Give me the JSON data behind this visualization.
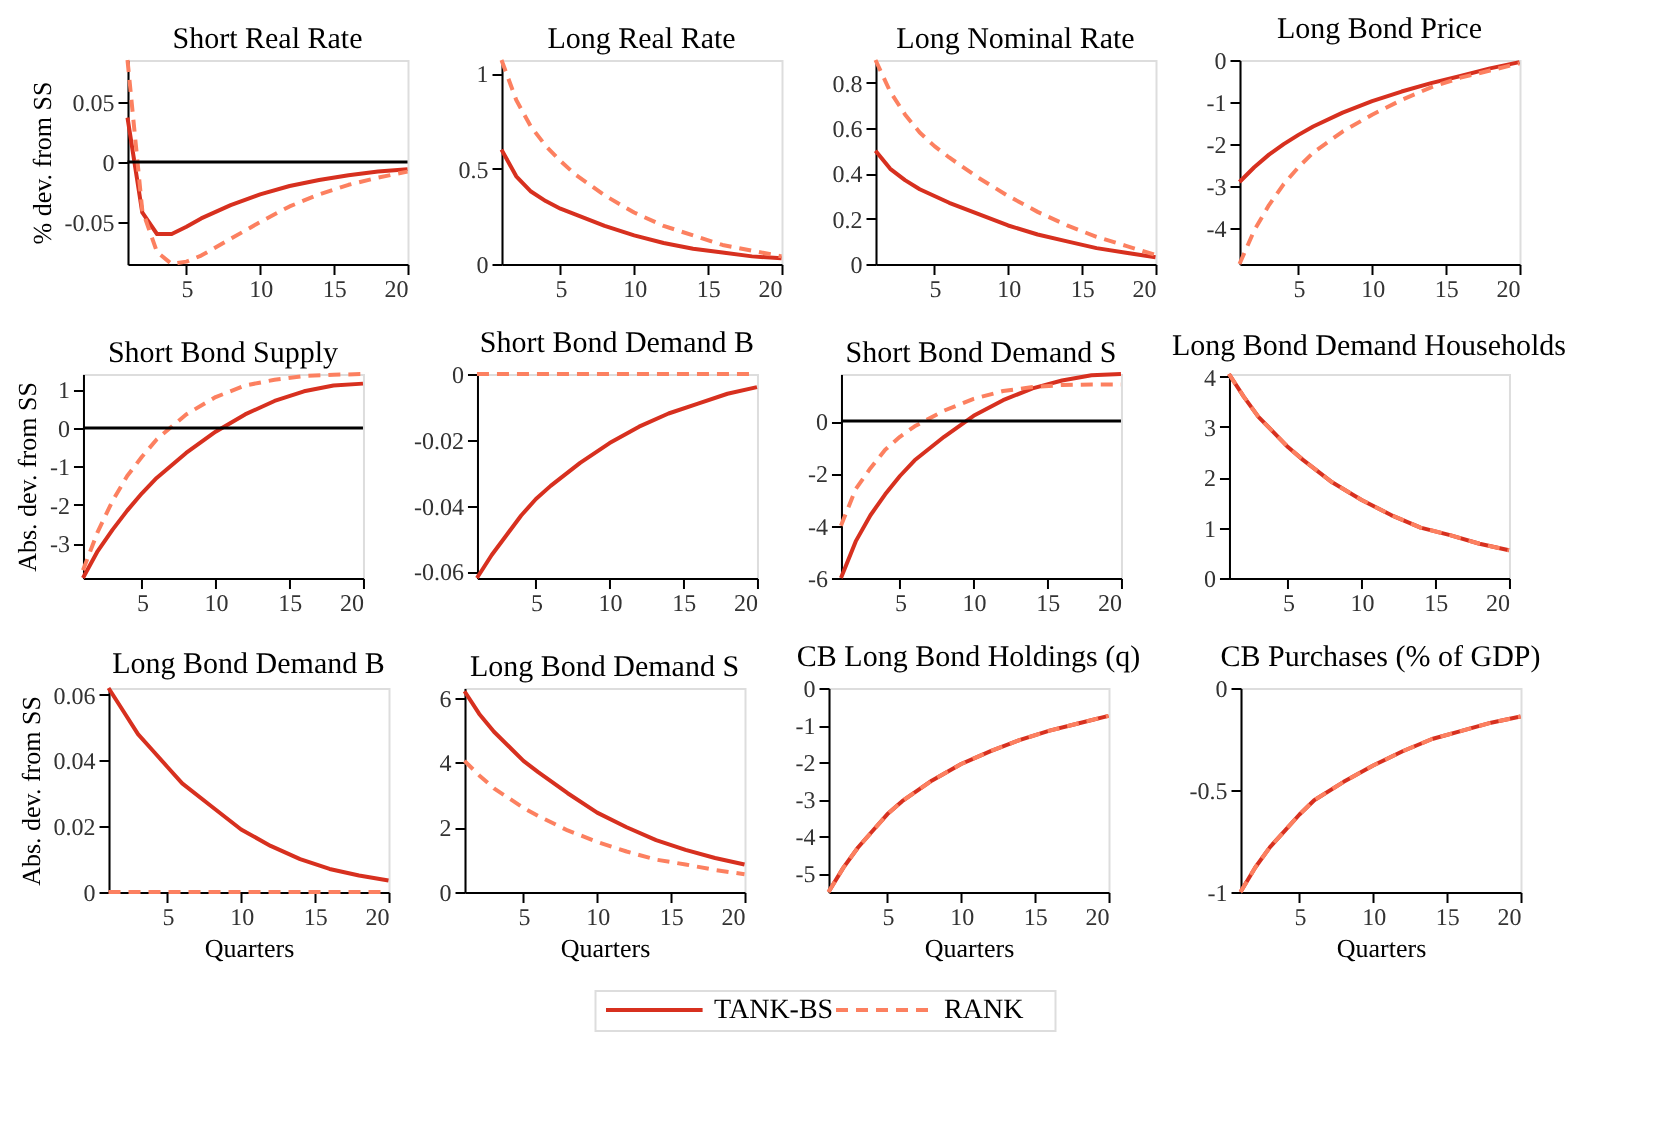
{
  "chart_data": [
    {
      "type": "line",
      "title": "Short Real Rate",
      "ylabel": "% dev. from SS",
      "x": [
        1,
        2,
        3,
        4,
        5,
        6,
        8,
        10,
        12,
        14,
        16,
        18,
        20
      ],
      "xlim": [
        1,
        20
      ],
      "xticks": [
        5,
        10,
        15,
        20
      ],
      "ylim": [
        -0.085,
        0.085
      ],
      "yticks": [
        -0.05,
        0,
        0.05
      ],
      "ref_lines": [
        {
          "axis": "y",
          "value": 0,
          "color": "#000000"
        }
      ],
      "legend": "bottom",
      "series": [
        {
          "name": "TANK-BS",
          "color": "#d7301f",
          "line_style": "solid",
          "values": [
            0.037,
            -0.042,
            -0.06,
            -0.06,
            -0.054,
            -0.047,
            -0.036,
            -0.027,
            -0.02,
            -0.015,
            -0.011,
            -0.008,
            -0.006
          ]
        },
        {
          "name": "RANK",
          "color": "#fc8060",
          "line_style": "dashed",
          "values": [
            0.085,
            -0.04,
            -0.075,
            -0.085,
            -0.083,
            -0.078,
            -0.064,
            -0.05,
            -0.037,
            -0.027,
            -0.019,
            -0.013,
            -0.008
          ]
        }
      ]
    },
    {
      "type": "line",
      "title": "Long Real Rate",
      "x": [
        1,
        2,
        3,
        4,
        5,
        6,
        8,
        10,
        12,
        14,
        16,
        18,
        20
      ],
      "xlim": [
        1,
        20
      ],
      "xticks": [
        5,
        10,
        15,
        20
      ],
      "ylim": [
        0,
        1.07
      ],
      "yticks": [
        0,
        0.5,
        1
      ],
      "legend": "bottom",
      "series": [
        {
          "color": "#d7301f",
          "line_style": "solid",
          "values": [
            0.6,
            0.46,
            0.38,
            0.33,
            0.29,
            0.26,
            0.2,
            0.15,
            0.11,
            0.08,
            0.06,
            0.04,
            0.03
          ]
        },
        {
          "color": "#fc8060",
          "line_style": "dashed",
          "values": [
            1.07,
            0.86,
            0.72,
            0.62,
            0.54,
            0.47,
            0.36,
            0.27,
            0.2,
            0.15,
            0.1,
            0.07,
            0.04
          ]
        }
      ]
    },
    {
      "type": "line",
      "title": "Long Nominal Rate",
      "x": [
        1,
        2,
        3,
        4,
        5,
        6,
        8,
        10,
        12,
        14,
        16,
        18,
        20
      ],
      "xlim": [
        1,
        20
      ],
      "xticks": [
        5,
        10,
        15,
        20
      ],
      "ylim": [
        0,
        0.9
      ],
      "yticks": [
        0,
        0.2,
        0.4,
        0.6,
        0.8
      ],
      "legend": "bottom",
      "series": [
        {
          "color": "#d7301f",
          "line_style": "solid",
          "values": [
            0.5,
            0.42,
            0.37,
            0.33,
            0.3,
            0.27,
            0.22,
            0.17,
            0.13,
            0.1,
            0.07,
            0.05,
            0.03
          ]
        },
        {
          "color": "#fc8060",
          "line_style": "dashed",
          "values": [
            0.9,
            0.76,
            0.66,
            0.58,
            0.52,
            0.47,
            0.38,
            0.3,
            0.23,
            0.17,
            0.12,
            0.08,
            0.04
          ]
        }
      ]
    },
    {
      "type": "line",
      "title": "Long Bond Price",
      "x": [
        1,
        2,
        3,
        4,
        5,
        6,
        8,
        10,
        12,
        14,
        16,
        18,
        20
      ],
      "xlim": [
        1,
        20
      ],
      "xticks": [
        5,
        10,
        15,
        20
      ],
      "ylim": [
        -4.85,
        0
      ],
      "yticks": [
        -4,
        -3,
        -2,
        -1,
        0
      ],
      "legend": "bottom",
      "series": [
        {
          "color": "#d7301f",
          "line_style": "solid",
          "values": [
            -2.9,
            -2.55,
            -2.25,
            -2.0,
            -1.78,
            -1.58,
            -1.25,
            -0.98,
            -0.75,
            -0.55,
            -0.38,
            -0.2,
            -0.05
          ]
        },
        {
          "color": "#fc8060",
          "line_style": "dashed",
          "values": [
            -4.85,
            -4.05,
            -3.45,
            -2.95,
            -2.55,
            -2.2,
            -1.7,
            -1.3,
            -0.95,
            -0.65,
            -0.42,
            -0.25,
            -0.08
          ]
        }
      ]
    },
    {
      "type": "line",
      "title": "Short Bond Supply",
      "ylabel": "Abs. dev. from SS",
      "x": [
        1,
        2,
        3,
        4,
        5,
        6,
        8,
        10,
        12,
        14,
        16,
        18,
        20
      ],
      "xlim": [
        1,
        20
      ],
      "xticks": [
        5,
        10,
        15,
        20
      ],
      "ylim": [
        -3.9,
        1.4
      ],
      "yticks": [
        -3,
        -2,
        -1,
        0,
        1
      ],
      "ref_lines": [
        {
          "axis": "y",
          "value": 0,
          "color": "#000000"
        }
      ],
      "legend": "bottom",
      "series": [
        {
          "color": "#d7301f",
          "line_style": "solid",
          "values": [
            -3.9,
            -3.2,
            -2.65,
            -2.15,
            -1.7,
            -1.3,
            -0.65,
            -0.1,
            0.35,
            0.7,
            0.95,
            1.1,
            1.15
          ]
        },
        {
          "color": "#fc8060",
          "line_style": "dashed",
          "values": [
            -3.7,
            -2.7,
            -1.9,
            -1.25,
            -0.75,
            -0.3,
            0.35,
            0.8,
            1.1,
            1.25,
            1.35,
            1.38,
            1.4
          ]
        }
      ]
    },
    {
      "type": "line",
      "title": "Short Bond Demand B",
      "x": [
        1,
        2,
        3,
        4,
        5,
        6,
        8,
        10,
        12,
        14,
        16,
        18,
        20
      ],
      "xlim": [
        1,
        20
      ],
      "xticks": [
        5,
        10,
        15,
        20
      ],
      "ylim": [
        -0.062,
        0
      ],
      "yticks": [
        -0.06,
        -0.04,
        -0.02,
        0
      ],
      "legend": "bottom",
      "series": [
        {
          "color": "#d7301f",
          "line_style": "solid",
          "values": [
            -0.062,
            -0.055,
            -0.049,
            -0.043,
            -0.038,
            -0.034,
            -0.027,
            -0.021,
            -0.016,
            -0.012,
            -0.009,
            -0.006,
            -0.004
          ]
        },
        {
          "color": "#fc8060",
          "line_style": "dashed",
          "values": [
            0,
            0,
            0,
            0,
            0,
            0,
            0,
            0,
            0,
            0,
            0,
            0,
            0
          ]
        }
      ]
    },
    {
      "type": "line",
      "title": "Short Bond Demand S",
      "x": [
        1,
        2,
        3,
        4,
        5,
        6,
        8,
        10,
        12,
        14,
        16,
        18,
        20
      ],
      "xlim": [
        1,
        20
      ],
      "xticks": [
        5,
        10,
        15,
        20
      ],
      "ylim": [
        -6,
        1.8
      ],
      "yticks": [
        -6,
        -4,
        -2,
        0
      ],
      "ref_lines": [
        {
          "axis": "y",
          "value": 0,
          "color": "#000000"
        }
      ],
      "legend": "bottom",
      "series": [
        {
          "color": "#d7301f",
          "line_style": "solid",
          "values": [
            -6,
            -4.6,
            -3.6,
            -2.8,
            -2.1,
            -1.5,
            -0.6,
            0.2,
            0.8,
            1.25,
            1.55,
            1.75,
            1.8
          ]
        },
        {
          "color": "#fc8060",
          "line_style": "dashed",
          "values": [
            -4,
            -2.6,
            -1.8,
            -1.1,
            -0.6,
            -0.2,
            0.4,
            0.85,
            1.15,
            1.3,
            1.38,
            1.4,
            1.4
          ]
        }
      ]
    },
    {
      "type": "line",
      "title": "Long Bond Demand Households",
      "x": [
        1,
        2,
        3,
        4,
        5,
        6,
        8,
        10,
        12,
        14,
        16,
        18,
        20
      ],
      "xlim": [
        1,
        20
      ],
      "xticks": [
        5,
        10,
        15,
        20
      ],
      "ylim": [
        0,
        4.05
      ],
      "yticks": [
        0,
        1,
        2,
        3,
        4
      ],
      "legend": "bottom",
      "series": [
        {
          "color": "#d7301f",
          "line_style": "solid",
          "values": [
            4.05,
            3.6,
            3.2,
            2.9,
            2.6,
            2.35,
            1.9,
            1.55,
            1.25,
            1.0,
            0.85,
            0.68,
            0.55
          ]
        },
        {
          "color": "#fc8060",
          "line_style": "dashed",
          "values": [
            4.05,
            3.6,
            3.2,
            2.9,
            2.6,
            2.35,
            1.9,
            1.55,
            1.25,
            1.0,
            0.85,
            0.68,
            0.55
          ]
        }
      ]
    },
    {
      "type": "line",
      "title": "Long Bond Demand B",
      "ylabel": "Abs. dev. from SS",
      "xlabel": "Quarters",
      "x": [
        1,
        2,
        3,
        4,
        5,
        6,
        8,
        10,
        12,
        14,
        16,
        18,
        20
      ],
      "xlim": [
        1,
        20
      ],
      "xticks": [
        5,
        10,
        15,
        20
      ],
      "ylim": [
        0,
        0.062
      ],
      "yticks": [
        0,
        0.02,
        0.04,
        0.06
      ],
      "legend": "bottom",
      "series": [
        {
          "color": "#d7301f",
          "line_style": "solid",
          "values": [
            0.062,
            0.055,
            0.048,
            0.043,
            0.038,
            0.033,
            0.026,
            0.019,
            0.014,
            0.01,
            0.007,
            0.005,
            0.0035
          ]
        },
        {
          "color": "#fc8060",
          "line_style": "dashed",
          "values": [
            0,
            0,
            0,
            0,
            0,
            0,
            0,
            0,
            0,
            0,
            0,
            0,
            0
          ]
        }
      ]
    },
    {
      "type": "line",
      "title": "Long Bond Demand S",
      "xlabel": "Quarters",
      "x": [
        1,
        2,
        3,
        4,
        5,
        6,
        8,
        10,
        12,
        14,
        16,
        18,
        20
      ],
      "xlim": [
        1,
        20
      ],
      "xticks": [
        5,
        10,
        15,
        20
      ],
      "ylim": [
        0,
        6.3
      ],
      "yticks": [
        0,
        2,
        4,
        6
      ],
      "legend": "bottom",
      "series": [
        {
          "color": "#d7301f",
          "line_style": "solid",
          "values": [
            6.2,
            5.5,
            4.95,
            4.5,
            4.05,
            3.7,
            3.05,
            2.45,
            2.0,
            1.6,
            1.3,
            1.05,
            0.85
          ]
        },
        {
          "color": "#fc8060",
          "line_style": "dashed",
          "values": [
            4.05,
            3.6,
            3.2,
            2.9,
            2.6,
            2.35,
            1.9,
            1.55,
            1.25,
            1.0,
            0.85,
            0.68,
            0.55
          ]
        }
      ]
    },
    {
      "type": "line",
      "title": "CB Long Bond Holdings (q)",
      "xlabel": "Quarters",
      "x": [
        1,
        2,
        3,
        4,
        5,
        6,
        8,
        10,
        12,
        14,
        16,
        18,
        20
      ],
      "xlim": [
        1,
        20
      ],
      "xticks": [
        5,
        10,
        15,
        20
      ],
      "ylim": [
        -5.5,
        0
      ],
      "yticks": [
        -5,
        -4,
        -3,
        -2,
        -1,
        0
      ],
      "legend": "bottom",
      "series": [
        {
          "color": "#d7301f",
          "line_style": "solid",
          "values": [
            -5.5,
            -4.85,
            -4.3,
            -3.85,
            -3.4,
            -3.05,
            -2.5,
            -2.05,
            -1.7,
            -1.4,
            -1.15,
            -0.95,
            -0.75
          ]
        },
        {
          "color": "#fc8060",
          "line_style": "dashed",
          "values": [
            -5.5,
            -4.85,
            -4.3,
            -3.85,
            -3.4,
            -3.05,
            -2.5,
            -2.05,
            -1.7,
            -1.4,
            -1.15,
            -0.95,
            -0.75
          ]
        }
      ]
    },
    {
      "type": "line",
      "title": "CB Purchases (% of GDP)",
      "xlabel": "Quarters",
      "x": [
        1,
        2,
        3,
        4,
        5,
        6,
        8,
        10,
        12,
        14,
        16,
        18,
        20
      ],
      "xlim": [
        1,
        20
      ],
      "xticks": [
        5,
        10,
        15,
        20
      ],
      "ylim": [
        -1,
        0
      ],
      "yticks": [
        -1,
        -0.5,
        0
      ],
      "legend": "bottom",
      "series": [
        {
          "color": "#d7301f",
          "line_style": "solid",
          "values": [
            -1,
            -0.88,
            -0.78,
            -0.7,
            -0.62,
            -0.55,
            -0.46,
            -0.38,
            -0.31,
            -0.25,
            -0.21,
            -0.17,
            -0.14
          ]
        },
        {
          "color": "#fc8060",
          "line_style": "dashed",
          "values": [
            -1,
            -0.88,
            -0.78,
            -0.7,
            -0.62,
            -0.55,
            -0.46,
            -0.38,
            -0.31,
            -0.25,
            -0.21,
            -0.17,
            -0.14
          ]
        }
      ]
    }
  ]
}
